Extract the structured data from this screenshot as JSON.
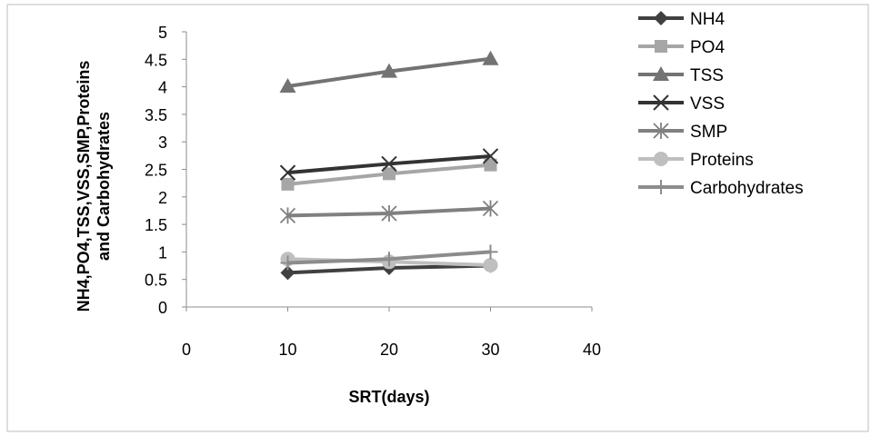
{
  "chart_data": {
    "type": "line",
    "title": "",
    "xlabel": "SRT(days)",
    "ylabel_line1": "NH4,PO4,TSS,VSS,SMP,Proteins",
    "ylabel_line2": "and Carbohydrates",
    "xlim": [
      0,
      40
    ],
    "ylim": [
      0,
      5
    ],
    "x_ticks": [
      "0",
      "10",
      "20",
      "30",
      "40"
    ],
    "y_ticks": [
      "0",
      "0.5",
      "1",
      "1.5",
      "2",
      "2.5",
      "3",
      "3.5",
      "4",
      "4.5",
      "5"
    ],
    "grid": false,
    "legend_position": "right",
    "x": [
      10,
      20,
      30
    ],
    "series": [
      {
        "name": "NH4",
        "values": [
          0.62,
          0.71,
          0.75
        ],
        "color": "#404040",
        "marker": "diamond"
      },
      {
        "name": "PO4",
        "values": [
          2.23,
          2.42,
          2.58
        ],
        "color": "#a6a6a6",
        "marker": "square"
      },
      {
        "name": "TSS",
        "values": [
          4.01,
          4.28,
          4.51
        ],
        "color": "#737373",
        "marker": "triangle"
      },
      {
        "name": "VSS",
        "values": [
          2.44,
          2.6,
          2.74
        ],
        "color": "#333333",
        "marker": "x"
      },
      {
        "name": "SMP",
        "values": [
          1.66,
          1.7,
          1.79
        ],
        "color": "#808080",
        "marker": "asterisk"
      },
      {
        "name": "Proteins",
        "values": [
          0.87,
          0.82,
          0.76
        ],
        "color": "#bfbfbf",
        "marker": "circle"
      },
      {
        "name": "Carbohydrates",
        "values": [
          0.8,
          0.87,
          1.0
        ],
        "color": "#8c8c8c",
        "marker": "plus"
      }
    ]
  }
}
